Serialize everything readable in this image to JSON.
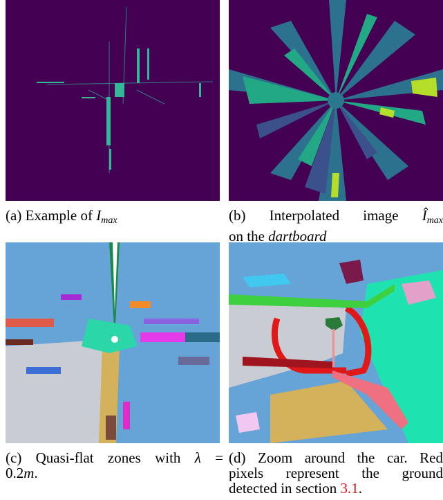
{
  "figures": {
    "a": {
      "label": "(a)",
      "text": "Example of ",
      "math": "I",
      "math_sub": "max"
    },
    "b": {
      "label": "(b)",
      "text_1": "Interpolated image ",
      "math": "Î",
      "math_sub": "max",
      "text_2": "on the ",
      "emph": "dartboard"
    },
    "c": {
      "label": "(c)",
      "text_1": "Quasi-flat zones with ",
      "math": "λ",
      "eq": " =",
      "value": "0.2",
      "unit": "m",
      "end": "."
    },
    "d": {
      "label": "(d)",
      "line_1": "Zoom around the car. Red",
      "line_2": "pixels represent the ground",
      "line_3_pre": "detected in section ",
      "ref": "3.1",
      "end": "."
    }
  },
  "colors": {
    "dark_purple": "#440154",
    "sky_blue": "#66a3d6",
    "road_gray": "#c9cdd3",
    "ground_red": "#e01818",
    "teal": "#1ee3b0"
  }
}
